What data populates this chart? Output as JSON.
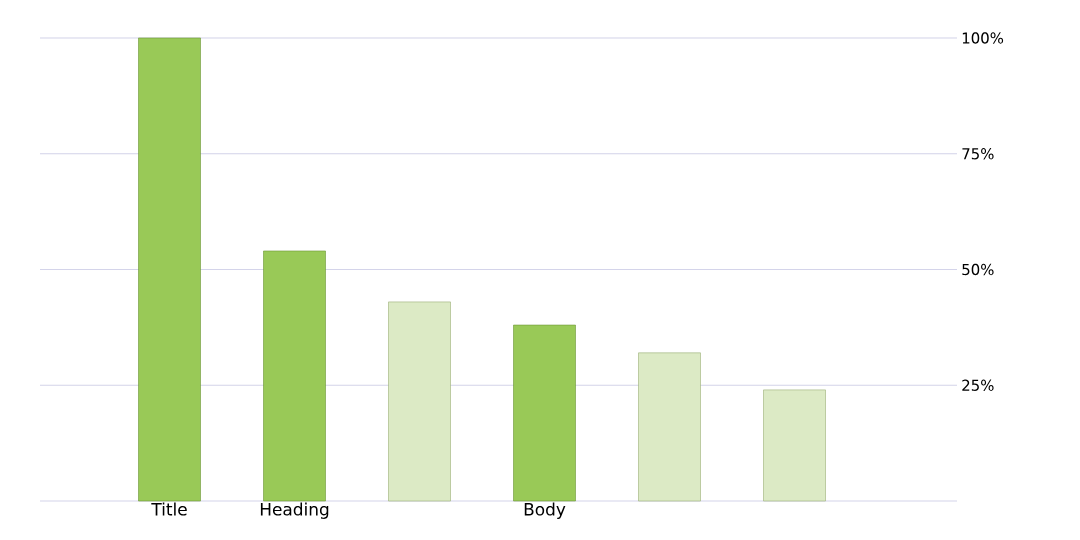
{
  "chart_data": {
    "type": "bar",
    "categories": [
      "Title",
      "Heading",
      null,
      "Body",
      null,
      null
    ],
    "values": [
      100,
      54,
      43,
      38,
      32,
      24
    ],
    "colors": [
      "#99c957",
      "#99c957",
      "#dceac5",
      "#99c957",
      "#dceac5",
      "#dceac5"
    ],
    "ylim": [
      0,
      100
    ],
    "yticks": [
      {
        "value": 0,
        "label": null
      },
      {
        "value": 25,
        "label": "25%"
      },
      {
        "value": 50,
        "label": "50%"
      },
      {
        "value": 75,
        "label": "75%"
      },
      {
        "value": 100,
        "label": "100%"
      }
    ],
    "grid": "y"
  }
}
